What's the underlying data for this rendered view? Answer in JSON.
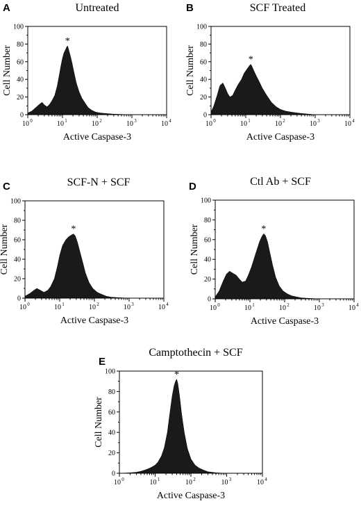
{
  "chart_data": [
    {
      "type": "area",
      "panel": "A",
      "title": "Untreated",
      "xlabel": "Active Caspase-3",
      "ylabel": "Cell Number",
      "x_scale": "log",
      "xlim": [
        1,
        10000
      ],
      "ylim": [
        0,
        100
      ],
      "x_ticks": [
        "10",
        "10",
        "10",
        "10",
        "10"
      ],
      "x_tick_exponents": [
        "0",
        "1",
        "2",
        "3",
        "4"
      ],
      "y_ticks": [
        "0",
        "20",
        "40",
        "60",
        "80",
        "100"
      ],
      "annotation": "*",
      "peak_x": 14,
      "series": [
        {
          "x": [
            1,
            1.3,
            1.7,
            2.2,
            2.6,
            3.0,
            3.6,
            4.3,
            5.0,
            6.0,
            7.0,
            8.0,
            9.0,
            10,
            11,
            12,
            13,
            14,
            15,
            17,
            19,
            22,
            25,
            30,
            36,
            45,
            55,
            70,
            90,
            120,
            160,
            220,
            300,
            500,
            1000,
            10000
          ],
          "y": [
            2,
            4,
            8,
            12,
            14,
            11,
            9,
            12,
            16,
            22,
            32,
            44,
            55,
            64,
            70,
            73,
            76,
            78,
            74,
            66,
            58,
            46,
            36,
            26,
            19,
            13,
            8,
            5,
            3,
            2,
            1.5,
            1,
            0.6,
            0.3,
            0,
            0
          ]
        }
      ]
    },
    {
      "type": "area",
      "panel": "B",
      "title": "SCF Treated",
      "xlabel": "Active Caspase-3",
      "ylabel": "Cell Number",
      "x_scale": "log",
      "xlim": [
        1,
        10000
      ],
      "ylim": [
        0,
        100
      ],
      "x_ticks": [
        "10",
        "10",
        "10",
        "10",
        "10"
      ],
      "x_tick_exponents": [
        "0",
        "1",
        "2",
        "3",
        "4"
      ],
      "y_ticks": [
        "0",
        "20",
        "40",
        "60",
        "80",
        "100"
      ],
      "annotation": "*",
      "peak_x": 14,
      "series": [
        {
          "x": [
            1,
            1.2,
            1.5,
            1.8,
            2.2,
            2.6,
            3.0,
            3.5,
            4.2,
            5.0,
            6.0,
            7.5,
            9.0,
            11,
            13,
            14,
            15,
            17,
            20,
            24,
            30,
            40,
            55,
            75,
            100,
            140,
            200,
            300,
            500,
            1000,
            10000
          ],
          "y": [
            3,
            10,
            22,
            33,
            36,
            30,
            24,
            20,
            22,
            28,
            34,
            40,
            47,
            52,
            56,
            57,
            55,
            50,
            44,
            38,
            30,
            22,
            14,
            9,
            6,
            4,
            3,
            2,
            1,
            0,
            0
          ]
        }
      ]
    },
    {
      "type": "area",
      "panel": "C",
      "title": "SCF-N + SCF",
      "xlabel": "Active Caspase-3",
      "ylabel": "Cell Number",
      "x_scale": "log",
      "xlim": [
        1,
        10000
      ],
      "ylim": [
        0,
        100
      ],
      "x_ticks": [
        "10",
        "10",
        "10",
        "10",
        "10"
      ],
      "x_tick_exponents": [
        "0",
        "1",
        "2",
        "3",
        "4"
      ],
      "y_ticks": [
        "0",
        "20",
        "40",
        "60",
        "80",
        "100"
      ],
      "annotation": "*",
      "peak_x": 25,
      "series": [
        {
          "x": [
            1,
            1.4,
            1.8,
            2.2,
            2.8,
            3.5,
            4.5,
            5.5,
            7.0,
            8.5,
            10,
            12,
            15,
            18,
            22,
            25,
            28,
            32,
            38,
            45,
            55,
            70,
            90,
            120,
            160,
            220,
            300,
            500,
            1000,
            10000
          ],
          "y": [
            2,
            5,
            8,
            10,
            8,
            6,
            8,
            12,
            20,
            32,
            44,
            54,
            60,
            63,
            65,
            66,
            64,
            58,
            48,
            38,
            26,
            16,
            10,
            6,
            4,
            2,
            1,
            0.5,
            0,
            0
          ]
        }
      ]
    },
    {
      "type": "area",
      "panel": "D",
      "title": "Ctl Ab + SCF",
      "xlabel": "Active Caspase-3",
      "ylabel": "Cell Number",
      "x_scale": "log",
      "xlim": [
        1,
        10000
      ],
      "ylim": [
        0,
        100
      ],
      "x_ticks": [
        "10",
        "10",
        "10",
        "10",
        "10"
      ],
      "x_tick_exponents": [
        "0",
        "1",
        "2",
        "3",
        "4"
      ],
      "y_ticks": [
        "0",
        "20",
        "40",
        "60",
        "80",
        "100"
      ],
      "annotation": "*",
      "peak_x": 25,
      "series": [
        {
          "x": [
            1,
            1.3,
            1.7,
            2.1,
            2.6,
            3.2,
            4.0,
            5.0,
            6.0,
            7.5,
            9.0,
            11,
            13,
            16,
            19,
            22,
            25,
            28,
            32,
            38,
            45,
            55,
            70,
            90,
            120,
            160,
            220,
            300,
            500,
            1000,
            10000
          ],
          "y": [
            2,
            8,
            18,
            25,
            28,
            26,
            24,
            20,
            17,
            18,
            24,
            32,
            40,
            50,
            58,
            63,
            66,
            64,
            58,
            46,
            34,
            22,
            13,
            8,
            5,
            3,
            2,
            1,
            0.5,
            0,
            0
          ]
        }
      ]
    },
    {
      "type": "area",
      "panel": "E",
      "title": "Camptothecin + SCF",
      "xlabel": "Active Caspase-3",
      "ylabel": "Cell Number",
      "x_scale": "log",
      "xlim": [
        1,
        10000
      ],
      "ylim": [
        0,
        100
      ],
      "x_ticks": [
        "10",
        "10",
        "10",
        "10",
        "10"
      ],
      "x_tick_exponents": [
        "0",
        "1",
        "2",
        "3",
        "4"
      ],
      "y_ticks": [
        "0",
        "20",
        "40",
        "60",
        "80",
        "100"
      ],
      "annotation": "*",
      "peak_x": 40,
      "series": [
        {
          "x": [
            1,
            2,
            3,
            4,
            5,
            6,
            7,
            8,
            10,
            12,
            15,
            18,
            22,
            26,
            30,
            34,
            38,
            40,
            43,
            48,
            55,
            65,
            80,
            100,
            130,
            170,
            230,
            300,
            500,
            1000,
            10000
          ],
          "y": [
            0,
            0.5,
            1,
            2,
            3,
            4,
            5,
            6,
            8,
            11,
            17,
            25,
            40,
            60,
            76,
            86,
            91,
            92,
            88,
            76,
            58,
            40,
            24,
            14,
            8,
            5,
            3,
            1.5,
            0.5,
            0,
            0
          ]
        }
      ]
    }
  ]
}
